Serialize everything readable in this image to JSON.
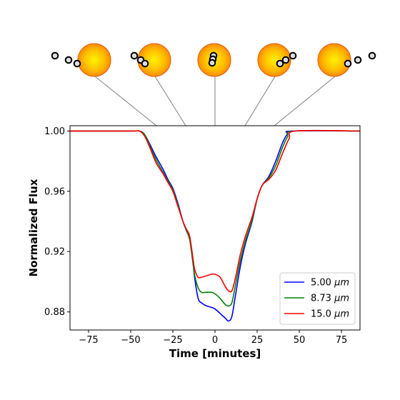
{
  "chart_data": {
    "type": "line",
    "xlabel": "Time [minutes]",
    "ylabel": "Normalized Flux",
    "xlim": [
      -86,
      86
    ],
    "ylim": [
      0.868,
      1.0035
    ],
    "xticks": [
      -75,
      -50,
      -25,
      0,
      25,
      50,
      75
    ],
    "xtick_labels": [
      "−75",
      "−50",
      "−25",
      "0",
      "25",
      "50",
      "75"
    ],
    "yticks": [
      0.88,
      0.92,
      0.96,
      1.0
    ],
    "ytick_labels": [
      "0.88",
      "0.92",
      "0.96",
      "1.00"
    ],
    "grid": false,
    "legend_position": "lower-right",
    "series": [
      {
        "name": "5.00 μm",
        "label_prefix": "5.00 ",
        "label_unit": "μm",
        "color": "#0000ff",
        "points": [
          [
            -86,
            1.0
          ],
          [
            -50,
            1.0
          ],
          [
            -45,
            1.0
          ],
          [
            -42,
            0.998
          ],
          [
            -39,
            0.992
          ],
          [
            -35,
            0.983
          ],
          [
            -31,
            0.975
          ],
          [
            -28,
            0.968
          ],
          [
            -25,
            0.962
          ],
          [
            -22,
            0.952
          ],
          [
            -19,
            0.94
          ],
          [
            -17,
            0.934
          ],
          [
            -15,
            0.928
          ],
          [
            -13,
            0.912
          ],
          [
            -12,
            0.902
          ],
          [
            -10,
            0.889
          ],
          [
            -8,
            0.886
          ],
          [
            -5,
            0.884
          ],
          [
            -2,
            0.883
          ],
          [
            0,
            0.882
          ],
          [
            3,
            0.879
          ],
          [
            6,
            0.876
          ],
          [
            8,
            0.874
          ],
          [
            10,
            0.877
          ],
          [
            12,
            0.89
          ],
          [
            15,
            0.91
          ],
          [
            18,
            0.925
          ],
          [
            22,
            0.94
          ],
          [
            25,
            0.955
          ],
          [
            28,
            0.964
          ],
          [
            32,
            0.97
          ],
          [
            36,
            0.98
          ],
          [
            40,
            0.992
          ],
          [
            43,
            0.998
          ],
          [
            46,
            1.0
          ],
          [
            86,
            1.0
          ]
        ]
      },
      {
        "name": "8.73 μm",
        "label_prefix": "8.73 ",
        "label_unit": "μm",
        "color": "#008000",
        "points": [
          [
            -86,
            1.0
          ],
          [
            -50,
            1.0
          ],
          [
            -45,
            1.0
          ],
          [
            -42,
            0.998
          ],
          [
            -39,
            0.991
          ],
          [
            -35,
            0.981
          ],
          [
            -31,
            0.973
          ],
          [
            -28,
            0.967
          ],
          [
            -25,
            0.961
          ],
          [
            -22,
            0.951
          ],
          [
            -19,
            0.94
          ],
          [
            -17,
            0.934
          ],
          [
            -15,
            0.928
          ],
          [
            -13,
            0.912
          ],
          [
            -12,
            0.904
          ],
          [
            -10,
            0.896
          ],
          [
            -8,
            0.893
          ],
          [
            -5,
            0.893
          ],
          [
            -2,
            0.893
          ],
          [
            0,
            0.892
          ],
          [
            3,
            0.889
          ],
          [
            6,
            0.885
          ],
          [
            8,
            0.884
          ],
          [
            10,
            0.886
          ],
          [
            12,
            0.897
          ],
          [
            15,
            0.914
          ],
          [
            18,
            0.927
          ],
          [
            22,
            0.941
          ],
          [
            25,
            0.955
          ],
          [
            28,
            0.964
          ],
          [
            32,
            0.969
          ],
          [
            36,
            0.977
          ],
          [
            40,
            0.989
          ],
          [
            43,
            0.996
          ],
          [
            47,
            1.0
          ],
          [
            86,
            1.0
          ]
        ]
      },
      {
        "name": "15.0 μm",
        "label_prefix": "15.0 ",
        "label_unit": "μm",
        "color": "#ff0000",
        "points": [
          [
            -86,
            1.0
          ],
          [
            -50,
            1.0
          ],
          [
            -45,
            1.0
          ],
          [
            -42,
            0.997
          ],
          [
            -39,
            0.99
          ],
          [
            -35,
            0.979
          ],
          [
            -31,
            0.972
          ],
          [
            -28,
            0.966
          ],
          [
            -25,
            0.96
          ],
          [
            -22,
            0.95
          ],
          [
            -19,
            0.94
          ],
          [
            -17,
            0.935
          ],
          [
            -15,
            0.93
          ],
          [
            -13,
            0.915
          ],
          [
            -12,
            0.908
          ],
          [
            -10,
            0.903
          ],
          [
            -8,
            0.903
          ],
          [
            -5,
            0.904
          ],
          [
            -2,
            0.905
          ],
          [
            0,
            0.905
          ],
          [
            3,
            0.903
          ],
          [
            6,
            0.897
          ],
          [
            8,
            0.894
          ],
          [
            10,
            0.894
          ],
          [
            12,
            0.902
          ],
          [
            15,
            0.918
          ],
          [
            18,
            0.93
          ],
          [
            22,
            0.943
          ],
          [
            25,
            0.955
          ],
          [
            28,
            0.964
          ],
          [
            32,
            0.968
          ],
          [
            36,
            0.974
          ],
          [
            40,
            0.985
          ],
          [
            44,
            0.995
          ],
          [
            48,
            1.0
          ],
          [
            86,
            1.0
          ]
        ]
      }
    ]
  },
  "diagram": {
    "star_color_center": "#fff200",
    "star_color_edge": "#ff8c00",
    "star_outline": "#e05a00",
    "moon_fill": "#dddddd",
    "moon_stroke": "#000000",
    "connector_color": "#808080"
  }
}
